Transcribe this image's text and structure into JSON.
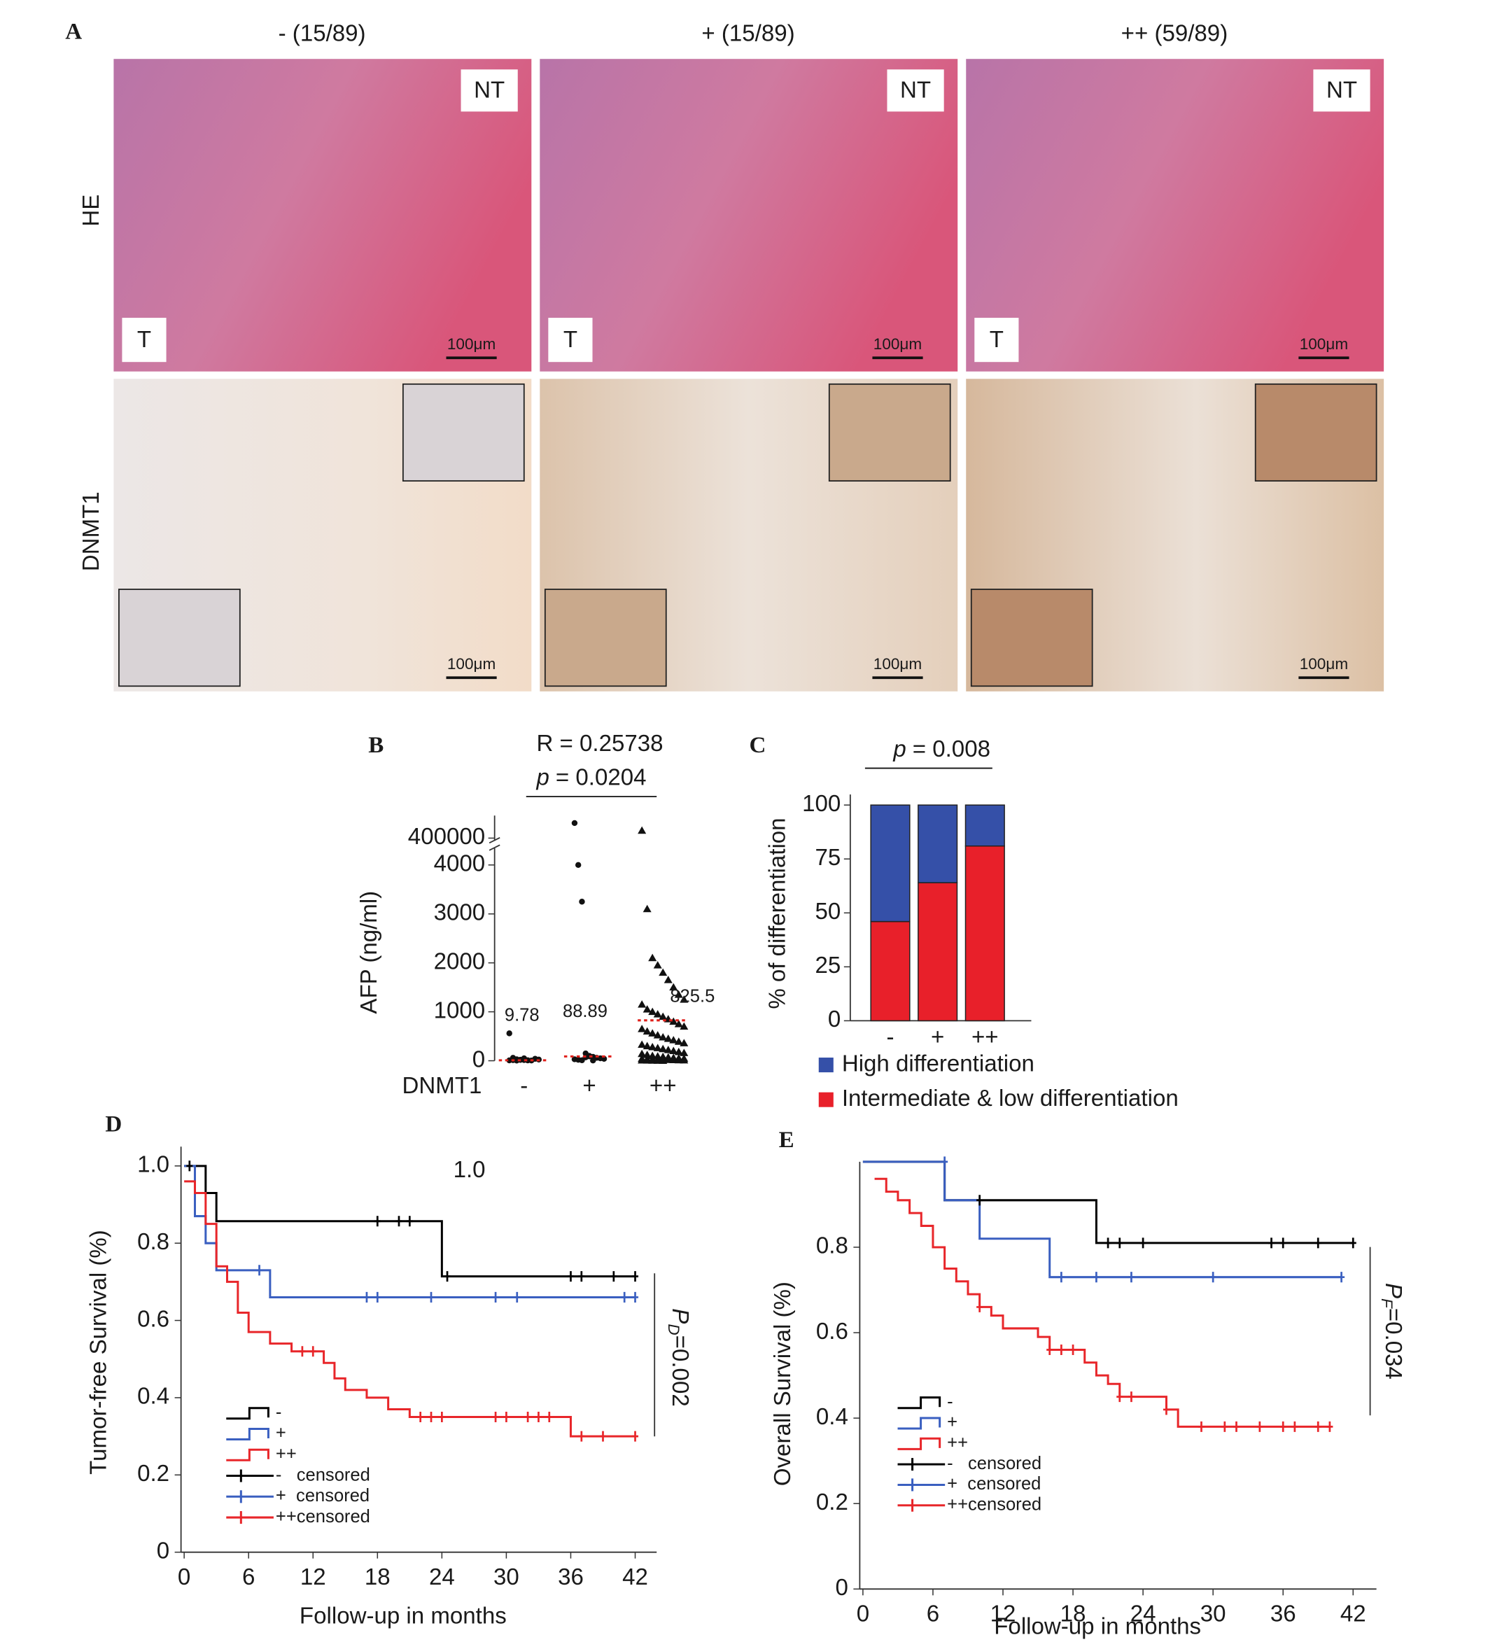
{
  "panel_a": {
    "label": "A",
    "columns": [
      "- (15/89)",
      "+ (15/89)",
      "++ (59/89)"
    ],
    "rows": [
      "HE",
      "DNMT1"
    ],
    "region_labels": {
      "non_tumor": "NT",
      "tumor": "T"
    },
    "scale_bar": "100μm"
  },
  "chart_data": [
    {
      "type": "dot",
      "panel_label": "B",
      "stat": "R = 0.25738",
      "p_symbol": "p",
      "p_text": "= 0.0204",
      "ylabel": "AFP (ng/ml)",
      "xlabel": "DNMT1",
      "categories": [
        "-",
        "+",
        "++"
      ],
      "markers": [
        "circle",
        "circle",
        "triangle"
      ],
      "color": "#111111",
      "values": [
        [
          560,
          60,
          30,
          20,
          15,
          10,
          5,
          40,
          25,
          8,
          12,
          3,
          18,
          50,
          7
        ],
        [
          420000,
          4000,
          3250,
          150,
          100,
          80,
          60,
          50,
          40,
          30,
          20,
          10,
          70,
          90,
          5
        ],
        [
          410000,
          3100,
          2100,
          1950,
          1800,
          1650,
          1500,
          1350,
          1250,
          1150,
          1050,
          1000,
          950,
          900,
          850,
          800,
          750,
          700,
          650,
          600,
          560,
          520,
          480,
          450,
          420,
          390,
          360,
          330,
          300,
          280,
          260,
          240,
          220,
          200,
          180,
          160,
          140,
          120,
          100,
          90,
          80,
          70,
          60,
          50,
          45,
          40,
          35,
          30,
          25,
          20,
          18,
          15,
          12,
          10,
          8,
          6,
          4,
          2,
          1
        ]
      ],
      "medians": [
        9.78,
        88.89,
        825.5
      ],
      "median_color": "#e0201b",
      "ylim": [
        0,
        4300
      ],
      "yticks": [
        0,
        1000,
        2000,
        3000,
        4000
      ],
      "break_ylim": [
        395000,
        430000
      ],
      "break_yticks": [
        400000
      ]
    },
    {
      "type": "stacked_bar",
      "panel_label": "C",
      "p_symbol": "p",
      "p_text": "= 0.008",
      "ylabel": "% of differentiation",
      "categories": [
        "-",
        "+",
        "++"
      ],
      "series": [
        {
          "name": "Intermediate & low differentiation",
          "color": "#e8202a",
          "values": [
            46,
            64,
            81
          ]
        },
        {
          "name": "High differentiation",
          "color": "#3550a8",
          "values": [
            54,
            36,
            19
          ]
        }
      ],
      "ylim": [
        0,
        100
      ],
      "yticks": [
        0,
        25,
        50,
        75,
        100
      ]
    },
    {
      "type": "survival",
      "panel_label": "D",
      "note": "1.0",
      "p_symbol": "P",
      "p_subscript": "D",
      "p_text": "=0.002",
      "xlabel": "Follow-up in months",
      "ylabel": "Tumor-free  Survival (%)",
      "xlim": [
        0,
        44
      ],
      "xticks": [
        0,
        6,
        12,
        18,
        24,
        30,
        36,
        42
      ],
      "ylim": [
        0,
        1.05
      ],
      "yticks": [
        0,
        0.2,
        0.4,
        0.6,
        0.8,
        {
          "value": 1,
          "label": "1.0"
        }
      ],
      "series": [
        {
          "name": "-",
          "color": "#000000",
          "x": [
            0,
            2,
            3,
            24,
            42
          ],
          "values": [
            1,
            0.93,
            0.857,
            0.714,
            0.714
          ]
        },
        {
          "name": "+",
          "color": "#3a5fc0",
          "x": [
            0,
            1,
            2,
            3,
            8,
            42
          ],
          "values": [
            1,
            0.87,
            0.8,
            0.73,
            0.66,
            0.66
          ]
        },
        {
          "name": "++",
          "color": "#e8262a",
          "x": [
            0,
            1,
            2,
            3,
            4,
            5,
            6,
            8,
            10,
            13,
            14,
            15,
            17,
            19,
            21,
            36,
            42
          ],
          "values": [
            0.96,
            0.93,
            0.85,
            0.74,
            0.7,
            0.62,
            0.57,
            0.54,
            0.52,
            0.49,
            0.45,
            0.42,
            0.4,
            0.37,
            0.35,
            0.3,
            0.3
          ]
        },
        {
          "name": "-   censored",
          "color": "#000000",
          "marker": "cross",
          "x": [
            0.5,
            18,
            20,
            21,
            24.5,
            36,
            37,
            40,
            42
          ],
          "values": [
            1,
            0.857,
            0.857,
            0.857,
            0.714,
            0.714,
            0.714,
            0.714,
            0.714
          ]
        },
        {
          "name": "+  censored",
          "color": "#3a5fc0",
          "marker": "cross",
          "x": [
            7,
            17,
            18,
            23,
            29,
            31,
            41,
            42
          ],
          "values": [
            0.73,
            0.66,
            0.66,
            0.66,
            0.66,
            0.66,
            0.66,
            0.66
          ]
        },
        {
          "name": "++censored",
          "color": "#e8262a",
          "marker": "cross",
          "x": [
            11,
            12,
            22,
            23,
            24,
            29,
            30,
            32,
            33,
            34,
            37,
            39,
            42
          ],
          "values": [
            0.52,
            0.52,
            0.35,
            0.35,
            0.35,
            0.35,
            0.35,
            0.35,
            0.35,
            0.35,
            0.3,
            0.3,
            0.3
          ]
        }
      ]
    },
    {
      "type": "survival",
      "panel_label": "E",
      "p_symbol": "P",
      "p_subscript": "F",
      "p_text": "=0.034",
      "xlabel": "Follow-up in months",
      "ylabel": "Overall Survival (%)",
      "xlim": [
        0,
        44
      ],
      "xticks": [
        0,
        6,
        12,
        18,
        24,
        30,
        36,
        42
      ],
      "ylim": [
        0,
        1
      ],
      "yticks": [
        0,
        0.2,
        0.4,
        0.6,
        0.8
      ],
      "series": [
        {
          "name": "-",
          "color": "#000000",
          "x": [
            0,
            7,
            20,
            42
          ],
          "values": [
            1,
            0.91,
            0.81,
            0.81
          ]
        },
        {
          "name": "+",
          "color": "#3a5fc0",
          "x": [
            0,
            7,
            10,
            16,
            41
          ],
          "values": [
            1,
            0.91,
            0.82,
            0.73,
            0.73
          ]
        },
        {
          "name": "++",
          "color": "#e8262a",
          "x": [
            1,
            2,
            3,
            4,
            5,
            6,
            7,
            8,
            9,
            10,
            11,
            12,
            15,
            16,
            19,
            20,
            21,
            22,
            26,
            27,
            40
          ],
          "values": [
            0.96,
            0.93,
            0.91,
            0.88,
            0.85,
            0.8,
            0.75,
            0.72,
            0.69,
            0.66,
            0.64,
            0.61,
            0.59,
            0.56,
            0.53,
            0.5,
            0.48,
            0.45,
            0.42,
            0.38,
            0.38
          ]
        },
        {
          "name": "-   censored",
          "color": "#000000",
          "marker": "cross",
          "x": [
            10,
            21,
            22,
            24,
            35,
            36,
            39,
            42
          ],
          "values": [
            0.91,
            0.81,
            0.81,
            0.81,
            0.81,
            0.81,
            0.81,
            0.81
          ]
        },
        {
          "name": "+  censored",
          "color": "#3a5fc0",
          "marker": "cross",
          "x": [
            7,
            17,
            20,
            23,
            30,
            41
          ],
          "values": [
            1,
            0.73,
            0.73,
            0.73,
            0.73,
            0.73
          ]
        },
        {
          "name": "++censored",
          "color": "#e8262a",
          "marker": "cross",
          "x": [
            10,
            16,
            17,
            18,
            22,
            23,
            26,
            29,
            31,
            32,
            34,
            36,
            37,
            39,
            40
          ],
          "values": [
            0.66,
            0.56,
            0.56,
            0.56,
            0.45,
            0.45,
            0.42,
            0.38,
            0.38,
            0.38,
            0.38,
            0.38,
            0.38,
            0.38,
            0.38
          ]
        }
      ]
    }
  ]
}
